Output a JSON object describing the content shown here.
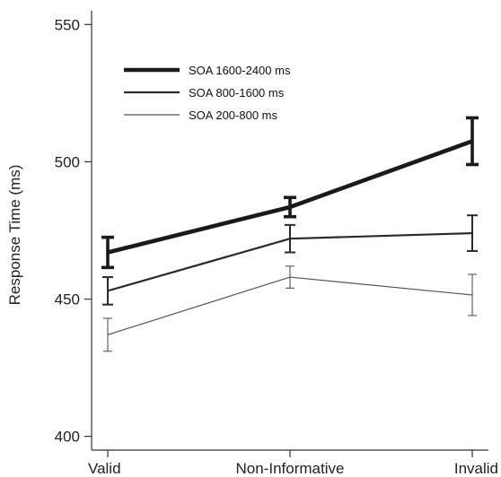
{
  "chart_data": {
    "type": "line",
    "title": "",
    "xlabel": "",
    "ylabel": "Response Time (ms)",
    "categories": [
      "Valid",
      "Non-Informative",
      "Invalid"
    ],
    "ylim": [
      395,
      555
    ],
    "yticks": [
      400,
      450,
      500,
      550
    ],
    "legend_position": "top-left",
    "grid": false,
    "error_bars": true,
    "series": [
      {
        "name": "SOA 1600-2400 ms",
        "values": [
          467,
          483.5,
          507.5
        ],
        "errors": [
          5.5,
          3.5,
          8.5
        ],
        "color": "#1a1a1a",
        "weight": "heavy"
      },
      {
        "name": "SOA 800-1600 ms",
        "values": [
          453,
          472,
          474
        ],
        "errors": [
          5,
          5,
          6.5
        ],
        "color": "#2a2a2a",
        "weight": "medium"
      },
      {
        "name": "SOA 200-800 ms",
        "values": [
          437,
          458,
          451.5
        ],
        "errors": [
          6,
          4,
          7.5
        ],
        "color": "#555555",
        "weight": "light"
      }
    ]
  }
}
